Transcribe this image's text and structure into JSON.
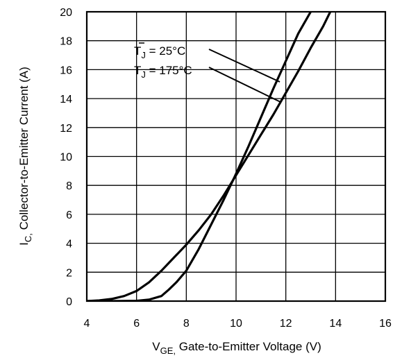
{
  "chart_data": {
    "type": "line",
    "title": "",
    "xlabel": {
      "main": "V",
      "sub": "GE,",
      "rest": " Gate-to-Emitter Voltage (V)"
    },
    "ylabel": {
      "main": "I",
      "sub": "C,",
      "rest": " Collector-to-Emitter Current  (A)"
    },
    "xlim": [
      4,
      16
    ],
    "ylim": [
      0,
      20
    ],
    "xticks": [
      "4",
      "6",
      "8",
      "10",
      "12",
      "14",
      "16"
    ],
    "yticks": [
      "0",
      "2",
      "4",
      "6",
      "8",
      "10",
      "12",
      "14",
      "16",
      "18",
      "20"
    ],
    "grid": true,
    "series": [
      {
        "name": "T_J = 25°C",
        "label": {
          "t": "T",
          "sub": "J",
          "rest": " = 25°C"
        },
        "x": [
          4.0,
          5.0,
          6.0,
          6.5,
          7.0,
          7.3,
          7.6,
          8.0,
          8.5,
          9.0,
          9.5,
          10.0,
          10.5,
          11.0,
          11.5,
          12.0,
          12.5,
          13.0,
          13.1
        ],
        "y": [
          0.0,
          0.0,
          0.02,
          0.1,
          0.35,
          0.8,
          1.3,
          2.1,
          3.6,
          5.3,
          7.0,
          8.8,
          10.7,
          12.7,
          14.7,
          16.6,
          18.5,
          20.0,
          20.4
        ]
      },
      {
        "name": "T_J = 175°C",
        "label": {
          "t": "T",
          "sub": "J",
          "rest": " = 175°C"
        },
        "x": [
          4.0,
          4.5,
          5.0,
          5.5,
          6.0,
          6.5,
          7.0,
          7.5,
          8.0,
          8.5,
          9.0,
          9.5,
          10.0,
          10.5,
          11.0,
          11.5,
          12.0,
          12.5,
          13.0,
          13.5,
          13.9
        ],
        "y": [
          0.0,
          0.05,
          0.15,
          0.35,
          0.7,
          1.3,
          2.1,
          3.0,
          3.9,
          4.9,
          6.0,
          7.3,
          8.7,
          10.1,
          11.5,
          12.9,
          14.4,
          15.9,
          17.5,
          19.0,
          20.4
        ]
      }
    ]
  }
}
